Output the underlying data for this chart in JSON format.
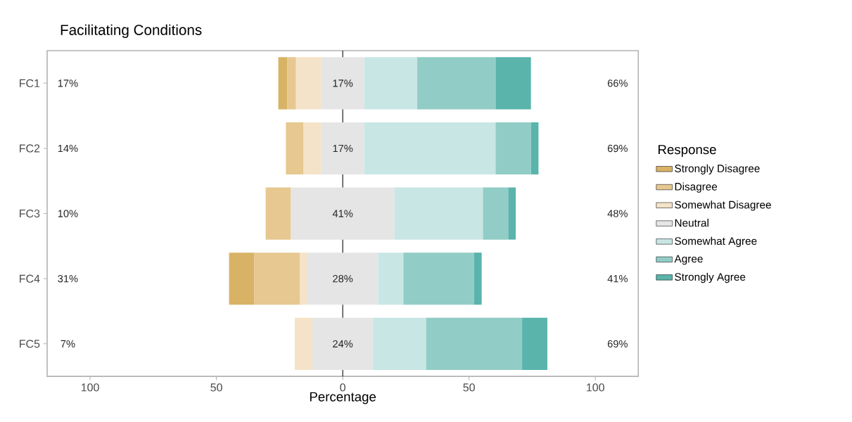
{
  "chart_data": {
    "type": "bar",
    "orientation": "horizontal",
    "title": "Facilitating Conditions",
    "xlabel": "Percentage",
    "legend_title": "Response",
    "legend": "right",
    "categories": [
      "FC1",
      "FC2",
      "FC3",
      "FC4",
      "FC5"
    ],
    "series": [
      {
        "name": "Strongly Disagree",
        "color": "#d8b365",
        "values": [
          3.5,
          null,
          null,
          10,
          null
        ],
        "base": [
          -25.5,
          null,
          null,
          -45,
          null
        ]
      },
      {
        "name": "Disagree",
        "color": "#e6c890",
        "values": [
          3.5,
          7,
          10,
          18,
          null
        ],
        "base": [
          -22,
          -22.5,
          -30.5,
          -35,
          null
        ]
      },
      {
        "name": "Somewhat Disagree",
        "color": "#f4e3c8",
        "values": [
          10,
          7,
          null,
          3,
          7
        ],
        "base": [
          -18.5,
          -15.5,
          null,
          -17,
          -19
        ]
      },
      {
        "name": "Neutral",
        "color": "#e5e5e5",
        "values": [
          17,
          17,
          41,
          28,
          24
        ],
        "base": [
          -8.5,
          -8.5,
          -20.5,
          -14,
          -12
        ],
        "value_labels": [
          "17%",
          "17%",
          "41%",
          "28%",
          "24%"
        ]
      },
      {
        "name": "Somewhat Agree",
        "color": "#c8e6e4",
        "values": [
          21,
          52,
          35,
          10,
          21
        ],
        "base": [
          8.5,
          8.5,
          20.5,
          14,
          12
        ]
      },
      {
        "name": "Agree",
        "color": "#91cdc6",
        "values": [
          31,
          14,
          10,
          28,
          38
        ],
        "base": [
          29.5,
          60.5,
          55.5,
          24,
          33
        ]
      },
      {
        "name": "Strongly Agree",
        "color": "#5ab4ac",
        "values": [
          14,
          3,
          3,
          3,
          10
        ],
        "base": [
          60.5,
          74.5,
          65.5,
          52,
          71
        ]
      }
    ],
    "xlim": [
      -117,
      117
    ],
    "xticks": [
      {
        "value": -100,
        "label": "100"
      },
      {
        "value": -50,
        "label": "50"
      },
      0,
      50,
      100
    ],
    "ref_lines": [
      {
        "axis": "x",
        "value": 0,
        "color": "#000000"
      }
    ],
    "annotations": [
      "17%",
      "14%",
      "10%",
      "31%",
      "7%",
      "66%",
      "69%",
      "48%",
      "41%",
      "69%"
    ]
  }
}
